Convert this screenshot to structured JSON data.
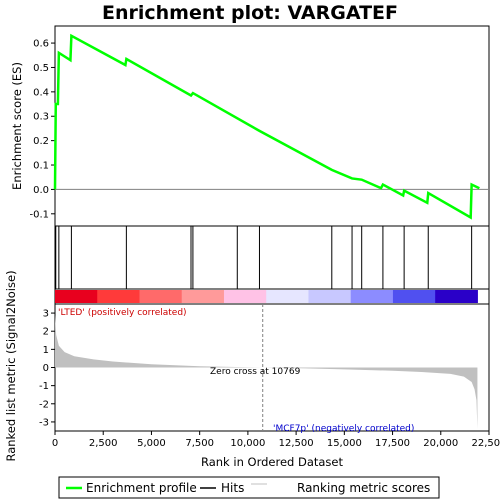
{
  "chart_data": {
    "type": "line",
    "title": "Enrichment plot: VARGATEF",
    "x_label": "Rank in Ordered Dataset",
    "x_range": [
      0,
      22500
    ],
    "x_ticks": [
      0,
      2500,
      5000,
      7500,
      10000,
      12500,
      15000,
      17500,
      20000,
      22500
    ],
    "x_tick_labels": [
      "0",
      "2,500",
      "5,000",
      "7,500",
      "10,000",
      "12,500",
      "15,000",
      "17,500",
      "20,000",
      "22,500"
    ],
    "dataset_size": 21900,
    "es_panel": {
      "y_label": "Enrichment score (ES)",
      "y_range": [
        -0.15,
        0.67
      ],
      "y_ticks": [
        -0.1,
        0.0,
        0.1,
        0.2,
        0.3,
        0.4,
        0.5,
        0.6
      ],
      "y_tick_labels": [
        "-0.1",
        "0.0",
        "0.1",
        "0.2",
        "0.3",
        "0.4",
        "0.5",
        "0.6"
      ],
      "series_name": "Enrichment profile",
      "color": "#00ff00",
      "points": [
        [
          0,
          0.0
        ],
        [
          40,
          0.35
        ],
        [
          150,
          0.35
        ],
        [
          200,
          0.56
        ],
        [
          800,
          0.53
        ],
        [
          850,
          0.63
        ],
        [
          3650,
          0.51
        ],
        [
          3700,
          0.535
        ],
        [
          7050,
          0.385
        ],
        [
          7150,
          0.395
        ],
        [
          10600,
          0.24
        ],
        [
          14350,
          0.08
        ],
        [
          15400,
          0.045
        ],
        [
          15900,
          0.04
        ],
        [
          16900,
          0.005
        ],
        [
          17000,
          0.02
        ],
        [
          18050,
          -0.025
        ],
        [
          18100,
          -0.005
        ],
        [
          19300,
          -0.055
        ],
        [
          19350,
          -0.015
        ],
        [
          21550,
          -0.115
        ],
        [
          21600,
          0.02
        ],
        [
          22000,
          0.005
        ]
      ]
    },
    "hits": [
      40,
      200,
      850,
      3700,
      7050,
      7150,
      9450,
      10600,
      14350,
      15400,
      15900,
      17000,
      18100,
      19350,
      21600
    ],
    "heatmap_colors": [
      "#e8001e",
      "#ff3a3a",
      "#ff6a6a",
      "#ff9a9a",
      "#ffc2e6",
      "#e6e6ff",
      "#c8c8ff",
      "#8c8cff",
      "#5050f0",
      "#2a00c8"
    ],
    "metric_panel": {
      "y_label": "Ranked list metric (Signal2Noise)",
      "y_range": [
        -3.5,
        3.5
      ],
      "y_ticks": [
        -3,
        -2,
        -1,
        0,
        1,
        2,
        3
      ],
      "y_tick_labels": [
        "-3",
        "-2",
        "-1",
        "0",
        "1",
        "2",
        "3"
      ],
      "series_name": "Ranking metric scores",
      "fill_color": "#c0c0c0",
      "points": [
        [
          0,
          2.9
        ],
        [
          60,
          1.8
        ],
        [
          200,
          1.2
        ],
        [
          500,
          0.85
        ],
        [
          1000,
          0.62
        ],
        [
          2000,
          0.45
        ],
        [
          3000,
          0.33
        ],
        [
          5000,
          0.18
        ],
        [
          7500,
          0.07
        ],
        [
          10000,
          0.015
        ],
        [
          10769,
          0.0
        ],
        [
          13000,
          -0.05
        ],
        [
          15000,
          -0.1
        ],
        [
          17500,
          -0.18
        ],
        [
          19000,
          -0.25
        ],
        [
          20500,
          -0.35
        ],
        [
          21200,
          -0.5
        ],
        [
          21600,
          -0.8
        ],
        [
          21750,
          -1.2
        ],
        [
          21850,
          -1.8
        ],
        [
          21900,
          -3.4
        ]
      ],
      "zero_cross": 10769,
      "zero_cross_label": "Zero cross at 10769",
      "positive_label": "'LTED' (positively correlated)",
      "negative_label": "'MCF7p' (negatively correlated)"
    },
    "legend": [
      {
        "label": "Enrichment profile",
        "color": "#00ff00"
      },
      {
        "label": "Hits",
        "color": "#000000"
      },
      {
        "label": "Ranking metric scores",
        "color": "#c0c0c0"
      }
    ]
  }
}
